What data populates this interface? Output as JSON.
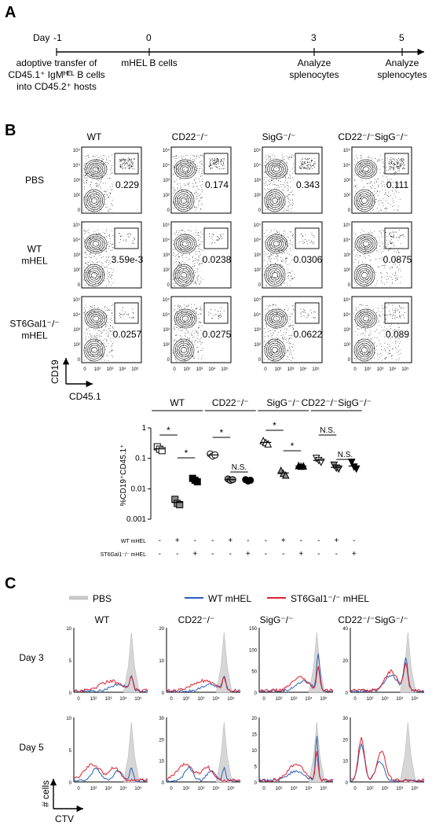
{
  "panels": {
    "a": "A",
    "b": "B",
    "c": "C"
  },
  "timeline": {
    "day_label": "Day",
    "days": [
      "-1",
      "0",
      "3",
      "5"
    ],
    "annotations": [
      {
        "lines": [
          "adoptive transfer of",
          "CD45.1⁺ IgMᴴᴱᴸ B cells",
          "into CD45.2⁺ hosts"
        ]
      },
      {
        "lines": [
          "mHEL B cells"
        ]
      },
      {
        "lines": [
          "Analyze",
          "splenocytes"
        ]
      },
      {
        "lines": [
          "Analyze",
          "splenocytes"
        ]
      }
    ]
  },
  "flow": {
    "columns": [
      "WT",
      "CD22⁻/⁻",
      "SigG⁻/⁻",
      "CD22⁻/⁻SigG⁻/⁻"
    ],
    "rows": [
      {
        "label": [
          "PBS"
        ],
        "values": [
          "0.229",
          "0.174",
          "0.343",
          "0.111"
        ]
      },
      {
        "label": [
          "WT",
          "mHEL"
        ],
        "values": [
          "3.59e-3",
          "0.0238",
          "0.0306",
          "0.0875"
        ]
      },
      {
        "label": [
          "ST6Gal1⁻/⁻",
          "mHEL"
        ],
        "values": [
          "0.0257",
          "0.0275",
          "0.0622",
          "0.089"
        ]
      }
    ],
    "y_ticks": [
      "10⁵",
      "10⁴",
      "10³",
      "10²",
      "0"
    ],
    "x_ticks": [
      "0",
      "10²",
      "10³",
      "10⁴",
      "10⁵"
    ],
    "y_axis": "CD19",
    "x_axis": "CD45.1"
  },
  "chart_data": {
    "type": "scatter",
    "title": "",
    "ylabel": "%CD19⁺CD45.1⁺",
    "yscale": "log",
    "ylim": [
      0.001,
      1
    ],
    "y_ticks": [
      "1",
      "0.1",
      "0.01",
      "0.001"
    ],
    "groups": [
      "WT",
      "CD22⁻/⁻",
      "SigG⁻/⁻",
      "CD22⁻/⁻SigG⁻/⁻"
    ],
    "condition_rows": [
      {
        "label": "WT mHEL",
        "marks": [
          "-",
          "+",
          "-",
          "-",
          "+",
          "-",
          "-",
          "+",
          "-",
          "-",
          "+",
          "-"
        ]
      },
      {
        "label": "ST6Gal1⁻/⁻ mHEL",
        "marks": [
          "-",
          "-",
          "+",
          "-",
          "-",
          "+",
          "-",
          "-",
          "+",
          "-",
          "-",
          "+"
        ]
      }
    ],
    "series": [
      {
        "group": "WT",
        "condition": "PBS",
        "symbol": "square-open",
        "values": [
          0.24,
          0.2,
          0.18
        ]
      },
      {
        "group": "WT",
        "condition": "WT mHEL",
        "symbol": "square-half",
        "values": [
          0.0045,
          0.0033,
          0.003
        ]
      },
      {
        "group": "WT",
        "condition": "ST6Gal1 mHEL",
        "symbol": "square-filled",
        "values": [
          0.022,
          0.019,
          0.017
        ]
      },
      {
        "group": "CD22⁻/⁻",
        "condition": "PBS",
        "symbol": "circle-open",
        "values": [
          0.14,
          0.12,
          0.13
        ]
      },
      {
        "group": "CD22⁻/⁻",
        "condition": "WT mHEL",
        "symbol": "circle-half",
        "values": [
          0.021,
          0.019,
          0.02
        ]
      },
      {
        "group": "CD22⁻/⁻",
        "condition": "ST6Gal1 mHEL",
        "symbol": "circle-filled",
        "values": [
          0.02,
          0.018,
          0.019
        ]
      },
      {
        "group": "SigG⁻/⁻",
        "condition": "PBS",
        "symbol": "triangle-open",
        "values": [
          0.38,
          0.33,
          0.3
        ]
      },
      {
        "group": "SigG⁻/⁻",
        "condition": "WT mHEL",
        "symbol": "triangle-half",
        "values": [
          0.04,
          0.032,
          0.028
        ]
      },
      {
        "group": "SigG⁻/⁻",
        "condition": "ST6Gal1 mHEL",
        "symbol": "triangle-filled",
        "values": [
          0.058,
          0.055,
          0.056
        ]
      },
      {
        "group": "CD22⁻/⁻SigG⁻/⁻",
        "condition": "PBS",
        "symbol": "tridown-open",
        "values": [
          0.1,
          0.085,
          0.075
        ]
      },
      {
        "group": "CD22⁻/⁻SigG⁻/⁻",
        "condition": "WT mHEL",
        "symbol": "tridown-half",
        "values": [
          0.06,
          0.048,
          0.045
        ]
      },
      {
        "group": "CD22⁻/⁻SigG⁻/⁻",
        "condition": "ST6Gal1 mHEL",
        "symbol": "tridown-filled",
        "values": [
          0.075,
          0.052,
          0.045
        ]
      }
    ],
    "significance": [
      {
        "label": "*",
        "from": 0,
        "to": 1
      },
      {
        "label": "*",
        "from": 1,
        "to": 2
      },
      {
        "label": "*",
        "from": 3,
        "to": 4
      },
      {
        "label": "N.S.",
        "from": 4,
        "to": 5
      },
      {
        "label": "*",
        "from": 6,
        "to": 7
      },
      {
        "label": "*",
        "from": 7,
        "to": 8
      },
      {
        "label": "N.S.",
        "from": 9,
        "to": 10
      },
      {
        "label": "N.S.",
        "from": 10,
        "to": 11
      }
    ]
  },
  "histograms": {
    "legend": [
      {
        "label": "PBS",
        "color": "#c8c8c8"
      },
      {
        "label": "WT mHEL",
        "color": "#2a5fb8"
      },
      {
        "label": "ST6Gal1⁻/⁻ mHEL",
        "color": "#e0202e"
      }
    ],
    "columns": [
      "WT",
      "CD22⁻/⁻",
      "SigG⁻/⁻",
      "CD22⁻/⁻SigG⁻/⁻"
    ],
    "rows": [
      "Day 3",
      "Day 5"
    ],
    "day3_y_ticks": [
      [
        "10",
        "5",
        "0"
      ],
      [
        "20",
        "10",
        "0"
      ],
      [
        "150",
        "100",
        "50",
        "0"
      ],
      [
        "40",
        "20",
        "0"
      ]
    ],
    "day5_y_ticks": [
      [
        "10",
        "5",
        "0"
      ],
      [
        "30",
        "20",
        "10",
        "0"
      ],
      [
        "20",
        "15",
        "10",
        "5",
        "0"
      ],
      [
        "30",
        "20",
        "10",
        "0"
      ]
    ],
    "x_ticks": [
      "0",
      "10²",
      "10³",
      "10⁴",
      "10⁵"
    ],
    "y_axis": "# cells",
    "x_axis": "CTV"
  }
}
